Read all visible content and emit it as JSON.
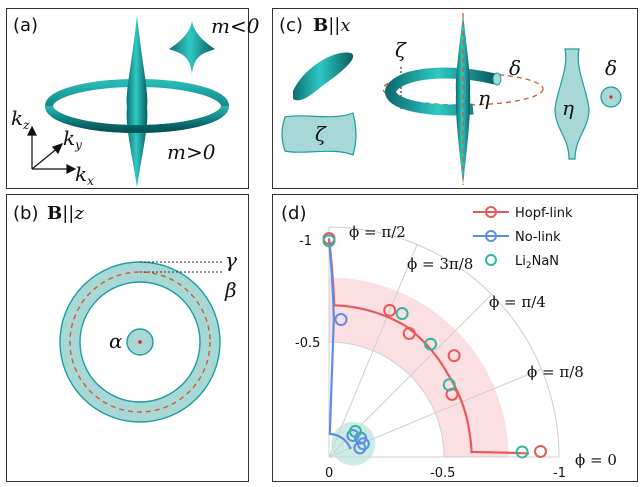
{
  "panels": {
    "a": {
      "label": "(a)",
      "m_neg": "m<0",
      "m_pos": "m>0",
      "kz": "k",
      "kz_sub": "z",
      "ky": "k",
      "ky_sub": "y",
      "kx": "k",
      "kx_sub": "x"
    },
    "b": {
      "label": "(b)",
      "field": "B",
      "field_dir": "||z",
      "gamma": "γ",
      "beta": "β",
      "alpha": "α"
    },
    "c": {
      "label": "(c)",
      "field": "B",
      "field_dir": "||x",
      "zeta_top": "ζ",
      "zeta_bottom": "ζ",
      "delta_ring": "δ",
      "eta_ring": "η",
      "eta_cut": "η",
      "delta_cut": "δ"
    },
    "d": {
      "label": "(d)"
    }
  },
  "colors": {
    "teal_fill": "#a8d8d6",
    "teal_dark": "#1a9e9e",
    "hopf": "#e85a5a",
    "nolink": "#5b8fe6",
    "li2nan": "#2fb8a0",
    "dashed": "#d45a2a"
  },
  "chart_data": {
    "type": "scatter",
    "coordinate": "polar",
    "radial_ticks": [
      "0",
      "-0.5",
      "-1"
    ],
    "radial_tick_values": [
      0,
      -0.5,
      -1
    ],
    "angle_labels": [
      "ϕ = π/2",
      "ϕ = 3π/8",
      "ϕ = π/4",
      "ϕ = π/8",
      "ϕ = 0"
    ],
    "angle_values_deg": [
      90,
      67.5,
      45,
      22.5,
      0
    ],
    "legend": [
      {
        "name": "Hopf-link",
        "color": "#e85a5a"
      },
      {
        "name": "No-link",
        "color": "#5b8fe6"
      },
      {
        "name": "Li2NaN",
        "display": "Li",
        "sub": "2",
        "tail": "NaN",
        "color": "#2fb8a0"
      }
    ],
    "series": [
      {
        "name": "Hopf-link",
        "points": [
          [
            0.95,
            90
          ],
          [
            0.69,
            67.5
          ],
          [
            0.64,
            57
          ],
          [
            0.7,
            39
          ],
          [
            0.6,
            27
          ],
          [
            0.92,
            1.5
          ]
        ]
      },
      {
        "name": "No-link",
        "points": [
          [
            0.14,
            42
          ],
          [
            0.16,
            31
          ],
          [
            0.14,
            16.5
          ],
          [
            0.16,
            21
          ],
          [
            0.6,
            85
          ]
        ]
      },
      {
        "name": "Li2NaN",
        "points": [
          [
            0.94,
            90
          ],
          [
            0.7,
            63
          ],
          [
            0.66,
            48
          ],
          [
            0.61,
            31
          ],
          [
            0.84,
            1.5
          ],
          [
            0.16,
            44
          ]
        ]
      }
    ],
    "curves": [
      {
        "name": "Hopf-link",
        "path_r": [
          [
            0.95,
            90
          ],
          [
            0.66,
            88
          ],
          [
            0.66,
            60
          ],
          [
            0.63,
            35
          ],
          [
            0.62,
            10
          ],
          [
            0.62,
            2
          ],
          [
            0.87,
            1
          ]
        ]
      },
      {
        "name": "No-link",
        "path_r": [
          [
            0.94,
            90
          ],
          [
            0.6,
            88
          ],
          [
            0.1,
            88
          ],
          [
            0.1,
            45
          ],
          [
            0.1,
            20
          ]
        ]
      }
    ],
    "rlim": [
      0,
      -1
    ]
  }
}
